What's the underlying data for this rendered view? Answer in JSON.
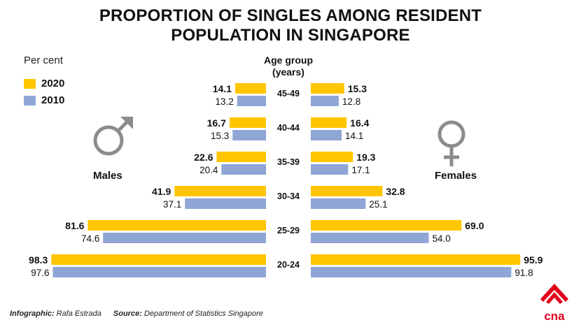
{
  "title_line1": "PROPORTION OF SINGLES AMONG RESIDENT",
  "title_line2": "POPULATION IN SINGAPORE",
  "unit_label": "Per cent",
  "legend": [
    {
      "label": "2020",
      "color": "#FFC600"
    },
    {
      "label": "2010",
      "color": "#8FA5D5"
    }
  ],
  "axis_title_line1": "Age group",
  "axis_title_line2": "(years)",
  "males_label": "Males",
  "females_label": "Females",
  "footer": {
    "infographic_label": "Infographic:",
    "infographic_value": "Rafa Estrada",
    "source_label": "Source:",
    "source_value": "Department of Statistics Singapore"
  },
  "logo_text": "cna",
  "logo_color": "#E2001A",
  "icons": {
    "male": "male-symbol-icon",
    "female": "female-symbol-icon",
    "color": "#8C8C8C"
  },
  "chart_data": {
    "type": "bar",
    "orientation": "horizontal",
    "layout": "butterfly",
    "categories": [
      "45-49",
      "40-44",
      "35-39",
      "30-34",
      "25-29",
      "20-24"
    ],
    "panels": [
      {
        "label": "Males",
        "series": [
          {
            "name": "2020",
            "values": [
              14.1,
              16.7,
              22.6,
              41.9,
              81.6,
              98.3
            ]
          },
          {
            "name": "2010",
            "values": [
              13.2,
              15.3,
              20.4,
              37.1,
              74.6,
              97.6
            ]
          }
        ]
      },
      {
        "label": "Females",
        "series": [
          {
            "name": "2020",
            "values": [
              15.3,
              16.4,
              19.3,
              32.8,
              69.0,
              95.9
            ]
          },
          {
            "name": "2010",
            "values": [
              12.8,
              14.1,
              17.1,
              25.1,
              54.0,
              91.8
            ]
          }
        ]
      }
    ],
    "xlim": [
      0,
      100
    ],
    "grid": false,
    "legend_position": "top-left"
  }
}
